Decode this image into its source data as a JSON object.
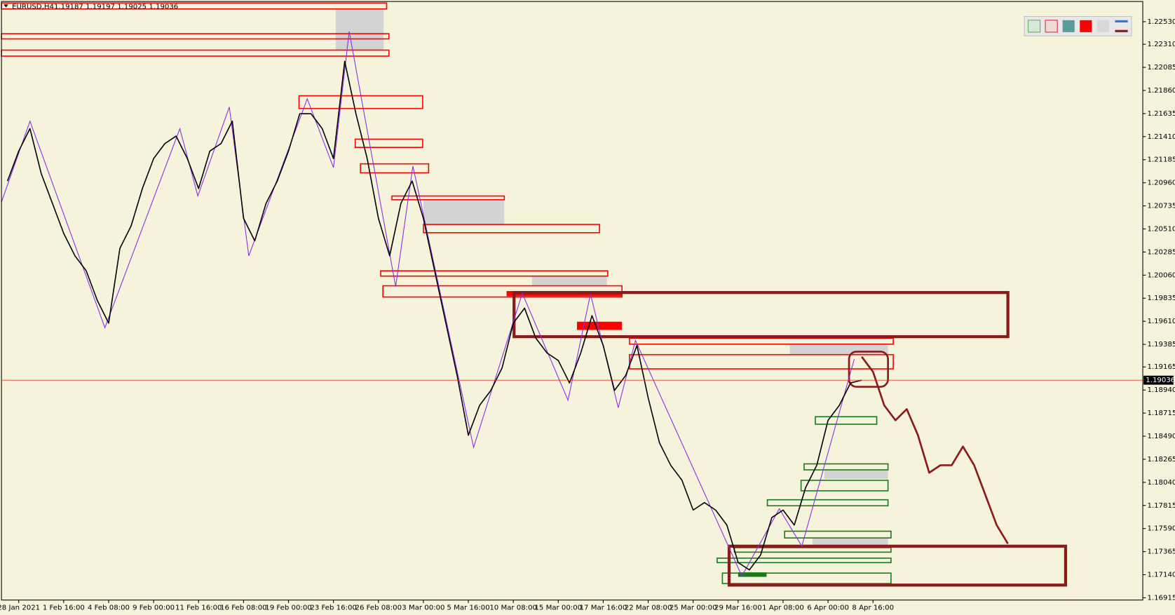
{
  "chart_data": {
    "type": "line",
    "title": "EURUSD,H4",
    "ohlc_text": "1.19187 1.19197 1.19025 1.19036",
    "last_price": 1.19036,
    "last_price_color": "#e03c1e",
    "ylim": [
      1.16893,
      1.22727
    ],
    "yticks": [
      {
        "value": 1.2253,
        "label": "1.22530"
      },
      {
        "value": 1.2231,
        "label": "1.22310"
      },
      1.22085,
      {
        "value": 1.2186,
        "label": "1.21860"
      },
      1.21635,
      {
        "value": 1.2141,
        "label": "1.21410"
      },
      1.21185,
      {
        "value": 1.2096,
        "label": "1.20960"
      },
      1.20735,
      {
        "value": 1.2051,
        "label": "1.20510"
      },
      1.20285,
      {
        "value": 1.2006,
        "label": "1.20060"
      },
      1.19835,
      {
        "value": 1.1961,
        "label": "1.19610"
      },
      1.19385,
      1.19165,
      {
        "value": 1.1894,
        "label": "1.18940"
      },
      1.18715,
      {
        "value": 1.1849,
        "label": "1.18490"
      },
      1.18265,
      {
        "value": 1.1804,
        "label": "1.18040"
      },
      1.17815,
      {
        "value": 1.1759,
        "label": "1.17590"
      },
      1.17365,
      {
        "value": 1.1714,
        "label": "1.17140"
      },
      1.16915
    ],
    "categories": [
      null,
      "28 Jan 2021",
      null,
      null,
      null,
      "1 Feb 16:00",
      null,
      null,
      null,
      "4 Feb 08:00",
      null,
      null,
      null,
      "9 Feb 00:00",
      null,
      null,
      null,
      "11 Feb 16:00",
      null,
      null,
      null,
      "16 Feb 08:00",
      null,
      null,
      null,
      "19 Feb 00:00",
      null,
      null,
      null,
      "23 Feb 16:00",
      null,
      null,
      null,
      "26 Feb 08:00",
      null,
      null,
      null,
      "3 Mar 00:00",
      null,
      null,
      null,
      "5 Mar 16:00",
      null,
      null,
      null,
      "10 Mar 08:00",
      null,
      null,
      null,
      "15 Mar 00:00",
      null,
      null,
      null,
      "17 Mar 16:00",
      null,
      null,
      null,
      "22 Mar 08:00",
      null,
      null,
      null,
      "25 Mar 00:00",
      null,
      null,
      null,
      "29 Mar 16:00",
      null,
      null,
      null,
      "1 Apr 08:00",
      null,
      null,
      null,
      "6 Apr 00:00",
      null,
      null,
      null,
      "8 Apr 16:00",
      null,
      null,
      null,
      null,
      null,
      null,
      null,
      null,
      null,
      null,
      null,
      null
    ],
    "series": [
      {
        "color": "#000000",
        "values": [
          1.20977,
          1.21269,
          1.21488,
          1.2105,
          1.20759,
          1.20467,
          1.20248,
          1.20103,
          1.19811,
          1.19592,
          1.20321,
          1.2054,
          1.20904,
          1.21196,
          1.21342,
          1.21415,
          1.21196,
          1.20904,
          1.21269,
          1.21342,
          1.21561,
          1.20613,
          1.20394,
          1.20759,
          1.20977,
          1.21269,
          1.21633,
          1.21633,
          1.21488,
          1.21196,
          1.22144,
          1.21633,
          1.21196,
          1.20613,
          1.20248,
          1.20759,
          1.20977,
          1.20613,
          1.20103,
          1.19592,
          1.19082,
          1.18499,
          1.1879,
          1.18936,
          1.19155,
          1.19592,
          1.19738,
          1.19446,
          1.19301,
          1.19228,
          1.19009,
          1.19301,
          1.19665,
          1.19374,
          1.18936,
          1.19082,
          1.19374,
          1.18863,
          1.18426,
          1.18207,
          1.18061,
          1.1777,
          1.17843,
          1.1777,
          1.17624,
          1.17259,
          1.17187,
          1.17332,
          1.17697,
          1.1777,
          1.17624,
          1.17988,
          1.18207,
          1.18645,
          1.1879,
          1.19009,
          1.19036,
          null,
          null,
          null,
          null,
          null,
          null,
          null,
          null,
          null,
          null,
          null,
          null,
          null
        ]
      },
      {
        "color": "#8b1a1a",
        "values": [
          null,
          null,
          null,
          null,
          null,
          null,
          null,
          null,
          null,
          null,
          null,
          null,
          null,
          null,
          null,
          null,
          null,
          null,
          null,
          null,
          null,
          null,
          null,
          null,
          null,
          null,
          null,
          null,
          null,
          null,
          null,
          null,
          null,
          null,
          null,
          null,
          null,
          null,
          null,
          null,
          null,
          null,
          null,
          null,
          null,
          null,
          null,
          null,
          null,
          null,
          null,
          null,
          null,
          null,
          null,
          null,
          null,
          null,
          null,
          null,
          null,
          null,
          null,
          null,
          null,
          null,
          null,
          null,
          null,
          null,
          null,
          null,
          null,
          null,
          null,
          null,
          1.19264,
          1.19118,
          1.1879,
          1.18645,
          1.18754,
          1.18499,
          1.18134,
          1.18207,
          1.18207,
          1.18389,
          1.18207,
          1.17916,
          1.17624,
          1.17442
        ]
      }
    ]
  }
}
